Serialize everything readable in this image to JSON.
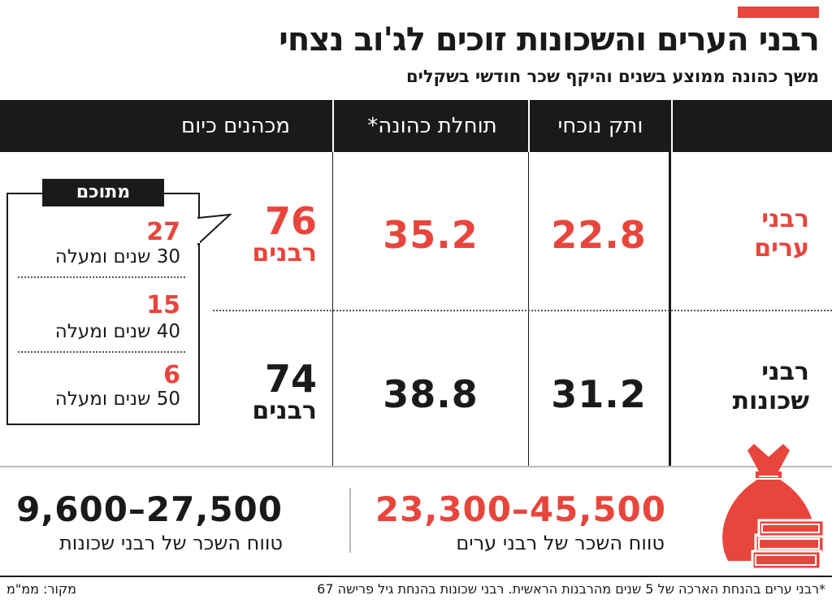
{
  "title": "רבני הערים והשכונות זוכים לג'וב נצחי",
  "subtitle": "משך כהונה ממוצע בשנים והיקף שכר חודשי בשקלים",
  "colors": {
    "accent": "#e8453c",
    "dark": "#1a1a1a"
  },
  "chart_data": {
    "type": "table",
    "columns": [
      "ותק נוכחי",
      "תוחלת כהונה*",
      "מכהנים כיום"
    ],
    "rows": [
      {
        "label": "רבני ערים",
        "label_line1": "רבני",
        "label_line2": "ערים",
        "current_tenure": "22.8",
        "expected_tenure": "35.2",
        "count": "76",
        "count_unit": "רבנים"
      },
      {
        "label": "רבני שכונות",
        "label_line1": "רבני",
        "label_line2": "שכונות",
        "current_tenure": "31.2",
        "expected_tenure": "38.8",
        "count": "74",
        "count_unit": "רבנים"
      }
    ],
    "callout": {
      "title": "מתוכם",
      "items": [
        {
          "value": "27",
          "label": "30 שנים ומעלה"
        },
        {
          "value": "15",
          "label": "40 שנים  ומעלה"
        },
        {
          "value": "6",
          "label": "50 שנים ומעלה"
        }
      ]
    },
    "salary_ranges": [
      {
        "range": "23,300–45,500",
        "label": "טווח השכר של רבני ערים"
      },
      {
        "range": "9,600–27,500",
        "label": "טווח השכר של רבני שכונות"
      }
    ]
  },
  "footnote": "*רבני ערים בהנחת הארכה של 5 שנים מהרבנות הראשית. רבני שכונות בהנחת גיל פרישה 67",
  "source": "מקור: ממ\"מ"
}
